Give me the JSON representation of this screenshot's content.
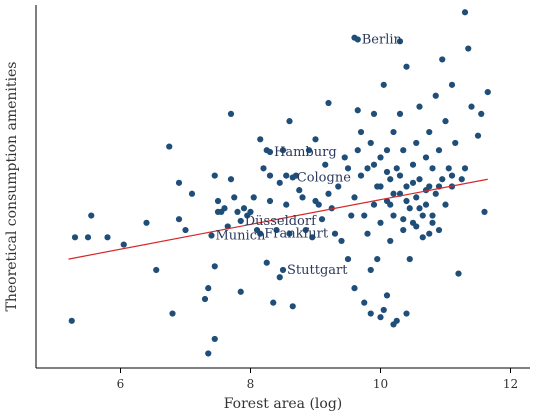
{
  "chart_data": {
    "type": "scatter",
    "xlabel": "Forest area (log)",
    "ylabel": "Theoretical consumption amenities",
    "xlim": [
      4.7,
      12.3
    ],
    "ylim": [
      0.0,
      1.0
    ],
    "xticks": [
      6,
      8,
      10,
      12
    ],
    "grid": false,
    "colors": {
      "points": "#1f4e79",
      "fit_line": "#d62728",
      "labels": "#2b3a5c"
    },
    "fit_line": {
      "x": [
        5.2,
        11.65
      ],
      "y": [
        0.3,
        0.52
      ]
    },
    "labeled_points": [
      {
        "name": "Berlin",
        "x": 9.65,
        "y": 0.905
      },
      {
        "name": "Hamburg",
        "x": 8.3,
        "y": 0.595
      },
      {
        "name": "Cologne",
        "x": 8.65,
        "y": 0.525
      },
      {
        "name": "Düsseldorf",
        "x": 7.85,
        "y": 0.405
      },
      {
        "name": "Munich",
        "x": 7.4,
        "y": 0.365
      },
      {
        "name": "Frankfurt",
        "x": 8.15,
        "y": 0.37
      },
      {
        "name": "Stuttgart",
        "x": 8.5,
        "y": 0.27
      }
    ],
    "points": [
      [
        5.25,
        0.13
      ],
      [
        5.3,
        0.36
      ],
      [
        5.5,
        0.36
      ],
      [
        5.55,
        0.42
      ],
      [
        5.8,
        0.36
      ],
      [
        6.05,
        0.34
      ],
      [
        6.4,
        0.4
      ],
      [
        6.55,
        0.27
      ],
      [
        6.75,
        0.61
      ],
      [
        6.8,
        0.15
      ],
      [
        6.9,
        0.41
      ],
      [
        6.9,
        0.51
      ],
      [
        7.0,
        0.38
      ],
      [
        7.1,
        0.48
      ],
      [
        7.3,
        0.19
      ],
      [
        7.35,
        0.22
      ],
      [
        7.35,
        0.04
      ],
      [
        7.45,
        0.08
      ],
      [
        7.45,
        0.28
      ],
      [
        7.5,
        0.46
      ],
      [
        7.5,
        0.43
      ],
      [
        7.45,
        0.53
      ],
      [
        7.55,
        0.43
      ],
      [
        7.6,
        0.44
      ],
      [
        7.65,
        0.39
      ],
      [
        7.7,
        0.52
      ],
      [
        7.7,
        0.7
      ],
      [
        7.75,
        0.47
      ],
      [
        7.8,
        0.43
      ],
      [
        7.85,
        0.21
      ],
      [
        7.9,
        0.44
      ],
      [
        7.95,
        0.42
      ],
      [
        8.0,
        0.43
      ],
      [
        8.05,
        0.47
      ],
      [
        8.1,
        0.38
      ],
      [
        8.15,
        0.63
      ],
      [
        8.2,
        0.55
      ],
      [
        8.25,
        0.6
      ],
      [
        8.25,
        0.29
      ],
      [
        8.3,
        0.46
      ],
      [
        8.3,
        0.53
      ],
      [
        8.35,
        0.18
      ],
      [
        8.4,
        0.38
      ],
      [
        8.45,
        0.25
      ],
      [
        8.45,
        0.51
      ],
      [
        8.5,
        0.6
      ],
      [
        8.55,
        0.45
      ],
      [
        8.55,
        0.53
      ],
      [
        8.6,
        0.37
      ],
      [
        8.6,
        0.68
      ],
      [
        8.65,
        0.17
      ],
      [
        8.7,
        0.53
      ],
      [
        8.75,
        0.49
      ],
      [
        8.8,
        0.47
      ],
      [
        8.85,
        0.38
      ],
      [
        8.9,
        0.6
      ],
      [
        8.95,
        0.36
      ],
      [
        9.0,
        0.46
      ],
      [
        9.0,
        0.63
      ],
      [
        9.05,
        0.45
      ],
      [
        9.1,
        0.41
      ],
      [
        9.15,
        0.56
      ],
      [
        9.2,
        0.48
      ],
      [
        9.2,
        0.73
      ],
      [
        9.25,
        0.44
      ],
      [
        9.3,
        0.37
      ],
      [
        9.35,
        0.5
      ],
      [
        9.4,
        0.35
      ],
      [
        9.45,
        0.58
      ],
      [
        9.5,
        0.55
      ],
      [
        9.5,
        0.3
      ],
      [
        9.55,
        0.42
      ],
      [
        9.6,
        0.47
      ],
      [
        9.6,
        0.22
      ],
      [
        9.65,
        0.6
      ],
      [
        9.65,
        0.71
      ],
      [
        9.7,
        0.53
      ],
      [
        9.7,
        0.65
      ],
      [
        9.75,
        0.18
      ],
      [
        9.75,
        0.42
      ],
      [
        9.8,
        0.55
      ],
      [
        9.8,
        0.37
      ],
      [
        9.85,
        0.62
      ],
      [
        9.85,
        0.27
      ],
      [
        9.9,
        0.45
      ],
      [
        9.9,
        0.7
      ],
      [
        9.95,
        0.5
      ],
      [
        9.95,
        0.3
      ],
      [
        10.0,
        0.58
      ],
      [
        10.0,
        0.4
      ],
      [
        10.05,
        0.78
      ],
      [
        10.05,
        0.16
      ],
      [
        10.1,
        0.6
      ],
      [
        10.1,
        0.46
      ],
      [
        10.1,
        0.2
      ],
      [
        10.15,
        0.52
      ],
      [
        10.15,
        0.35
      ],
      [
        10.2,
        0.65
      ],
      [
        10.2,
        0.42
      ],
      [
        10.25,
        0.55
      ],
      [
        10.25,
        0.13
      ],
      [
        10.3,
        0.48
      ],
      [
        10.3,
        0.7
      ],
      [
        10.35,
        0.38
      ],
      [
        10.35,
        0.6
      ],
      [
        10.4,
        0.5
      ],
      [
        10.4,
        0.83
      ],
      [
        10.45,
        0.44
      ],
      [
        10.45,
        0.3
      ],
      [
        10.5,
        0.56
      ],
      [
        10.5,
        0.4
      ],
      [
        10.55,
        0.62
      ],
      [
        10.55,
        0.47
      ],
      [
        10.6,
        0.52
      ],
      [
        10.6,
        0.72
      ],
      [
        10.65,
        0.42
      ],
      [
        10.65,
        0.36
      ],
      [
        10.7,
        0.58
      ],
      [
        10.7,
        0.45
      ],
      [
        10.75,
        0.5
      ],
      [
        10.75,
        0.65
      ],
      [
        10.8,
        0.4
      ],
      [
        10.8,
        0.55
      ],
      [
        10.85,
        0.48
      ],
      [
        10.85,
        0.75
      ],
      [
        10.9,
        0.6
      ],
      [
        10.9,
        0.38
      ],
      [
        10.95,
        0.52
      ],
      [
        10.95,
        0.85
      ],
      [
        11.0,
        0.45
      ],
      [
        11.0,
        0.68
      ],
      [
        11.05,
        0.55
      ],
      [
        11.1,
        0.5
      ],
      [
        11.1,
        0.78
      ],
      [
        11.15,
        0.62
      ],
      [
        11.2,
        0.26
      ],
      [
        11.25,
        0.52
      ],
      [
        11.3,
        0.55
      ],
      [
        11.3,
        0.98
      ],
      [
        11.35,
        0.88
      ],
      [
        11.4,
        0.72
      ],
      [
        11.5,
        0.64
      ],
      [
        11.55,
        0.7
      ],
      [
        11.6,
        0.43
      ],
      [
        11.65,
        0.76
      ],
      [
        10.0,
        0.5
      ],
      [
        10.2,
        0.48
      ],
      [
        10.4,
        0.46
      ],
      [
        10.6,
        0.44
      ],
      [
        10.8,
        0.42
      ],
      [
        10.3,
        0.53
      ],
      [
        10.5,
        0.51
      ],
      [
        10.7,
        0.49
      ],
      [
        9.9,
        0.56
      ],
      [
        10.1,
        0.54
      ],
      [
        10.9,
        0.5
      ],
      [
        11.1,
        0.53
      ],
      [
        10.35,
        0.41
      ],
      [
        10.55,
        0.39
      ],
      [
        10.75,
        0.37
      ],
      [
        10.15,
        0.45
      ],
      [
        9.85,
        0.15
      ],
      [
        10.0,
        0.14
      ],
      [
        10.2,
        0.12
      ],
      [
        10.4,
        0.15
      ],
      [
        9.6,
        0.91
      ],
      [
        10.3,
        0.9
      ]
    ]
  }
}
